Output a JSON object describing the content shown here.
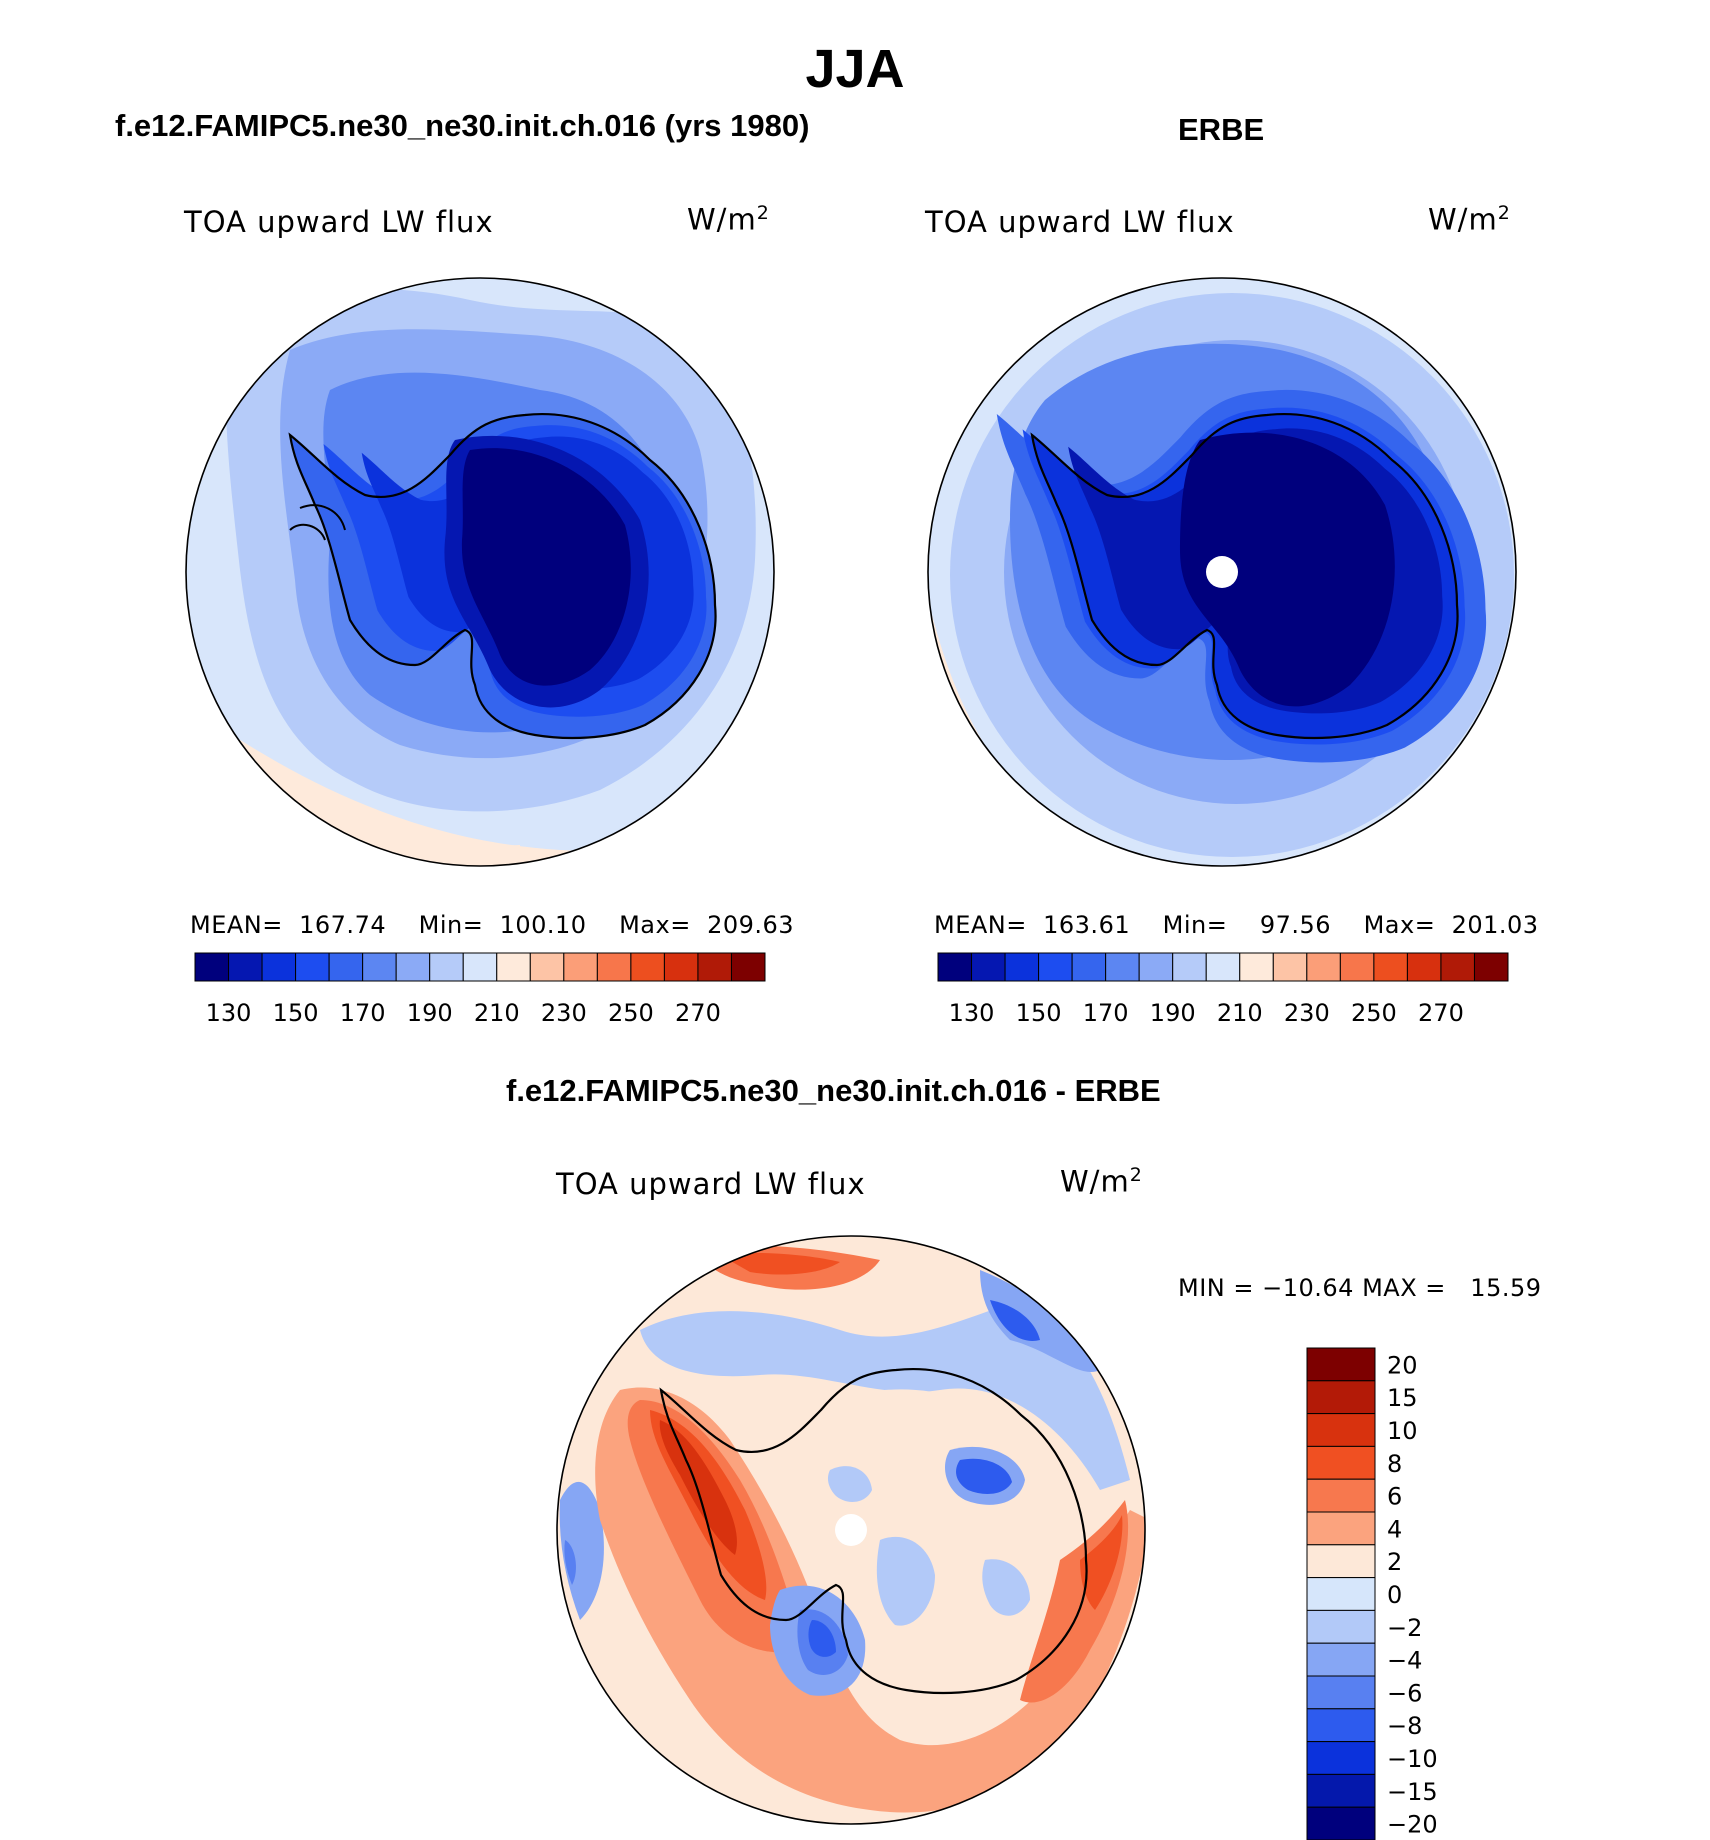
{
  "figure": {
    "title": "JJA"
  },
  "panels": [
    {
      "title": "f.e12.FAMIPC5.ne30_ne30.init.ch.016 (yrs 1980)",
      "variable": "TOA upward LW flux",
      "units_base": "W/m",
      "units_exp": "2",
      "mean_label": "MEAN=",
      "mean": "167.74",
      "min_label": "Min=",
      "min": "100.10",
      "max_label": "Max=",
      "max": "209.63"
    },
    {
      "title": "ERBE",
      "variable": "TOA upward LW flux",
      "units_base": "W/m",
      "units_exp": "2",
      "mean_label": "MEAN=",
      "mean": "163.61",
      "min_label": "Min=",
      "min": "97.56",
      "max_label": "Max=",
      "max": "201.03"
    }
  ],
  "diff_panel": {
    "title": "f.e12.FAMIPC5.ne30_ne30.init.ch.016 - ERBE",
    "variable": "TOA upward LW flux",
    "units_base": "W/m",
    "units_exp": "2",
    "min_label": "MIN =",
    "min": "−10.64",
    "max_label": "MAX =",
    "max": "15.59"
  },
  "chart_data": [
    {
      "type": "contour-map",
      "projection": "south polar stereographic",
      "title": "f.e12.FAMIPC5.ne30_ne30.init.ch.016 (yrs 1980)",
      "variable": "TOA upward LW flux",
      "units": "W/m2",
      "levels": [
        130,
        140,
        150,
        160,
        170,
        180,
        190,
        200,
        210,
        220,
        230,
        240,
        250,
        260,
        270
      ],
      "colorbar_labels": [
        "130",
        "150",
        "170",
        "190",
        "210",
        "230",
        "250",
        "270"
      ],
      "colors": [
        "#00007d",
        "#0517b1",
        "#0b32dc",
        "#1d4df0",
        "#3565ee",
        "#5c86f2",
        "#8baaf6",
        "#b5cbf9",
        "#d8e6fb",
        "#feeadb",
        "#fdc4a6",
        "#fb9e78",
        "#f7764b",
        "#ed4f1f",
        "#d7300e",
        "#b01a07",
        "#7d0000"
      ],
      "mean": 167.74,
      "min": 100.1,
      "max": 209.63
    },
    {
      "type": "contour-map",
      "projection": "south polar stereographic",
      "title": "ERBE",
      "variable": "TOA upward LW flux",
      "units": "W/m2",
      "levels": [
        130,
        140,
        150,
        160,
        170,
        180,
        190,
        200,
        210,
        220,
        230,
        240,
        250,
        260,
        270
      ],
      "colorbar_labels": [
        "130",
        "150",
        "170",
        "190",
        "210",
        "230",
        "250",
        "270"
      ],
      "colors": [
        "#00007d",
        "#0517b1",
        "#0b32dc",
        "#1d4df0",
        "#3565ee",
        "#5c86f2",
        "#8baaf6",
        "#b5cbf9",
        "#d8e6fb",
        "#feeadb",
        "#fdc4a6",
        "#fb9e78",
        "#f7764b",
        "#ed4f1f",
        "#d7300e",
        "#b01a07",
        "#7d0000"
      ],
      "mean": 163.61,
      "min": 97.56,
      "max": 201.03
    },
    {
      "type": "contour-map",
      "projection": "south polar stereographic",
      "title": "f.e12.FAMIPC5.ne30_ne30.init.ch.016 - ERBE",
      "variable": "TOA upward LW flux",
      "units": "W/m2",
      "levels": [
        -20,
        -15,
        -10,
        -8,
        -6,
        -4,
        -2,
        0,
        2,
        4,
        6,
        8,
        10,
        15,
        20
      ],
      "colorbar_labels": [
        "20",
        "15",
        "10",
        "8",
        "6",
        "4",
        "2",
        "0",
        "−2",
        "−4",
        "−6",
        "−8",
        "−10",
        "−15",
        "−20"
      ],
      "colors": [
        "#7d0000",
        "#b31a07",
        "#d8320e",
        "#f05022",
        "#f7784e",
        "#fba37e",
        "#fde8d8",
        "#d6e6fb",
        "#b2c9f8",
        "#86a6f4",
        "#5880f1",
        "#2d5bee",
        "#0b32dc",
        "#0418ac",
        "#00007d"
      ],
      "min": -10.64,
      "max": 15.59
    }
  ]
}
